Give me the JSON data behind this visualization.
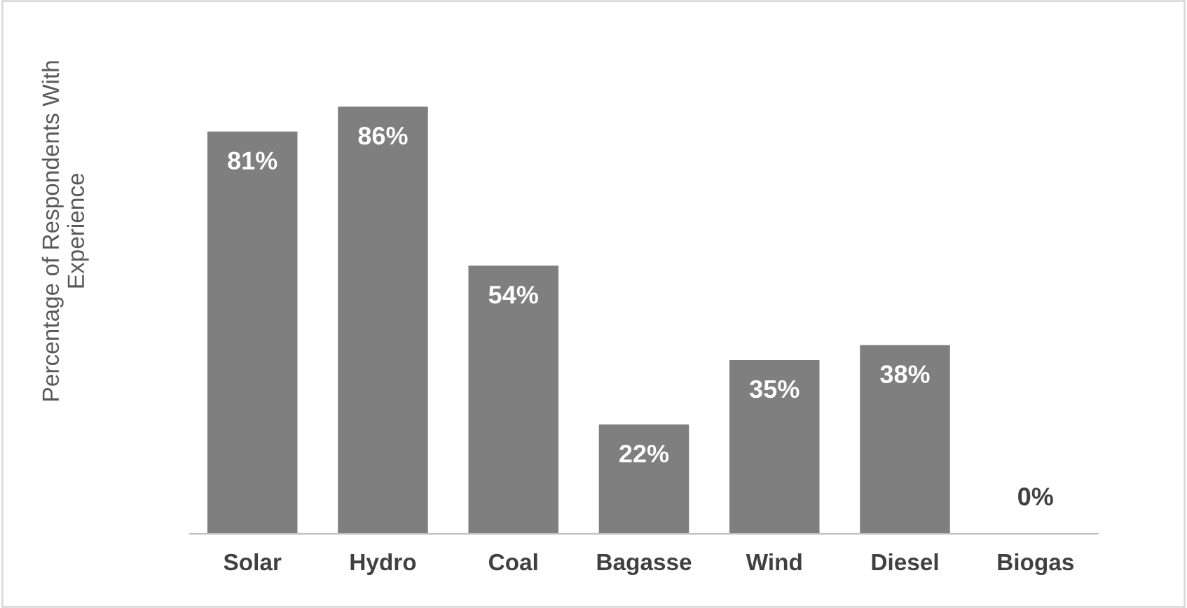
{
  "chart_data": {
    "type": "bar",
    "ylabel": "Percentage of Respondents With\nExperience",
    "categories": [
      "Solar",
      "Hydro",
      "Coal",
      "Bagasse",
      "Wind",
      "Diesel",
      "Biogas"
    ],
    "values": [
      81,
      86,
      54,
      22,
      35,
      38,
      0
    ],
    "value_labels": [
      "81%",
      "86%",
      "54%",
      "22%",
      "35%",
      "38%",
      "0%"
    ],
    "color": "#7f7f7f",
    "grid": false,
    "legend": false
  }
}
